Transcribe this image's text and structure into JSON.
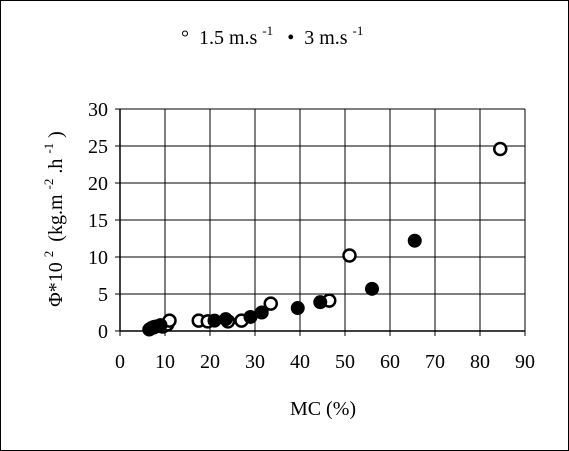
{
  "chart_data": {
    "type": "scatter",
    "xlabel": "MC (%)",
    "ylabel": "Φ*10",
    "ylabel_sup": "2",
    "ylabel_units": "(kg.m",
    "ylabel_units_sup1": "-2",
    "ylabel_units_mid": ".h",
    "ylabel_units_sup2": "-1",
    "ylabel_units_end": ")",
    "xlim": [
      0,
      90
    ],
    "ylim": [
      0,
      30
    ],
    "xticks": [
      0,
      10,
      20,
      30,
      40,
      50,
      60,
      70,
      80,
      90
    ],
    "yticks": [
      0,
      5,
      10,
      15,
      20,
      25,
      30
    ],
    "grid": true,
    "legend_position": "top",
    "legend": {
      "series1_symbol": "°",
      "series1_label": "1.5 m.s",
      "series1_sup": "-1",
      "series2_symbol": "•",
      "series2_label": "3 m.s",
      "series2_sup": "-1"
    },
    "series": [
      {
        "name": "1.5 m.s-1",
        "marker": "open-circle",
        "x": [
          7.5,
          9.5,
          10.5,
          11,
          17.5,
          19.5,
          24,
          27,
          33.5,
          46.5,
          51,
          84.5
        ],
        "y": [
          0.5,
          0.6,
          0.9,
          1.4,
          1.4,
          1.3,
          1.3,
          1.4,
          3.7,
          4.1,
          10.2,
          24.6
        ]
      },
      {
        "name": "3 m.s-1",
        "marker": "filled-circle",
        "x": [
          6.5,
          7,
          8,
          9,
          21,
          23.5,
          29,
          31.5,
          39.5,
          44.5,
          56,
          65.5
        ],
        "y": [
          0.2,
          0.4,
          0.6,
          0.8,
          1.4,
          1.6,
          1.9,
          2.5,
          3.1,
          3.9,
          5.7,
          12.2
        ]
      }
    ]
  }
}
